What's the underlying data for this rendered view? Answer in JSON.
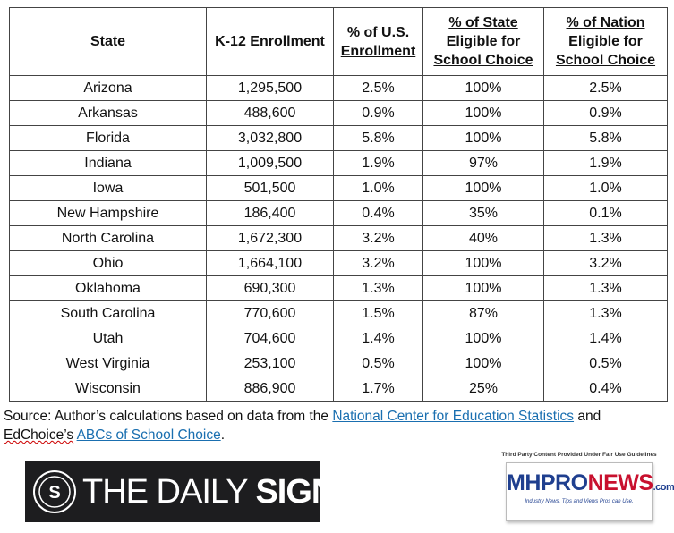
{
  "table": {
    "headers": [
      "State",
      "K-12 Enrollment",
      "% of U.S. Enrollment",
      "% of State Eligible for School Choice",
      "% of Nation Eligible for School Choice"
    ],
    "rows": [
      [
        "Arizona",
        "1,295,500",
        "2.5%",
        "100%",
        "2.5%"
      ],
      [
        "Arkansas",
        "488,600",
        "0.9%",
        "100%",
        "0.9%"
      ],
      [
        "Florida",
        "3,032,800",
        "5.8%",
        "100%",
        "5.8%"
      ],
      [
        "Indiana",
        "1,009,500",
        "1.9%",
        "97%",
        "1.9%"
      ],
      [
        "Iowa",
        "501,500",
        "1.0%",
        "100%",
        "1.0%"
      ],
      [
        "New Hampshire",
        "186,400",
        "0.4%",
        "35%",
        "0.1%"
      ],
      [
        "North Carolina",
        "1,672,300",
        "3.2%",
        "40%",
        "1.3%"
      ],
      [
        "Ohio",
        "1,664,100",
        "3.2%",
        "100%",
        "3.2%"
      ],
      [
        "Oklahoma",
        "690,300",
        "1.3%",
        "100%",
        "1.3%"
      ],
      [
        "South Carolina",
        "770,600",
        "1.5%",
        "87%",
        "1.3%"
      ],
      [
        "Utah",
        "704,600",
        "1.4%",
        "100%",
        "1.4%"
      ],
      [
        "West Virginia",
        "253,100",
        "0.5%",
        "100%",
        "0.5%"
      ],
      [
        "Wisconsin",
        "886,900",
        "1.7%",
        "25%",
        "0.4%"
      ]
    ]
  },
  "source": {
    "prefix": "Source: Author’s calculations based on data from the ",
    "link1": "National Center for Education Statistics",
    "mid": " and ",
    "edchoice": "EdChoice’s",
    "space": " ",
    "link2": "ABCs of School Choice",
    "suffix": "."
  },
  "daily_signal_logo": {
    "text_light": "THE DAILY ",
    "text_bold": "SIGNAL",
    "emblem_letter": "S"
  },
  "mhpronews": {
    "note": "Third Party Content Provided Under Fair Use Guidelines",
    "name_left": "MHPRO",
    "name_right": "NEWS",
    "name_suffix": ".com",
    "tagline": "Industry News, Tips and Views Pros can Use."
  },
  "colors": {
    "link": "#1a6fb0",
    "logo_bg": "#1d1d1f",
    "mh_blue": "#1f3f8f",
    "mh_red": "#c8102e"
  }
}
